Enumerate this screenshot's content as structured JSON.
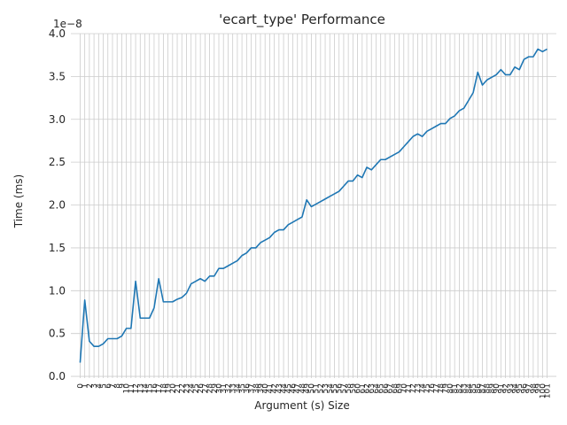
{
  "chart_data": {
    "type": "line",
    "title": "'ecart_type' Performance",
    "xlabel": "Argument (s) Size",
    "ylabel": "Time (ms)",
    "y_offset_label": "1e−8",
    "y_scale_exponent": -8,
    "xlim": [
      -2,
      103
    ],
    "ylim": [
      -0.02,
      4.0
    ],
    "ytick_values": [
      0.0,
      0.5,
      1.0,
      1.5,
      2.0,
      2.5,
      3.0,
      3.5,
      4.0
    ],
    "ytick_labels": [
      "0.0",
      "0.5",
      "1.0",
      "1.5",
      "2.0",
      "2.5",
      "3.0",
      "3.5",
      "4.0"
    ],
    "xtick_labels": [
      "0",
      "1",
      "2",
      "3",
      "4",
      "5",
      "6",
      "7",
      "8",
      "9",
      "10",
      "11",
      "12",
      "13",
      "14",
      "15",
      "16",
      "17",
      "18",
      "19",
      "20",
      "21",
      "22",
      "23",
      "24",
      "25",
      "26",
      "27",
      "28",
      "29",
      "30",
      "31",
      "32",
      "33",
      "34",
      "35",
      "36",
      "37",
      "38",
      "39",
      "40",
      "41",
      "42",
      "43",
      "44",
      "45",
      "46",
      "47",
      "48",
      "49",
      "50",
      "51",
      "52",
      "53",
      "54",
      "55",
      "56",
      "57",
      "58",
      "59",
      "60",
      "61",
      "62",
      "63",
      "64",
      "65",
      "66",
      "67",
      "68",
      "69",
      "70",
      "71",
      "72",
      "73",
      "74",
      "75",
      "76",
      "77",
      "78",
      "79",
      "80",
      "81",
      "82",
      "83",
      "84",
      "85",
      "86",
      "87",
      "88",
      "89",
      "90",
      "91",
      "92",
      "93",
      "94",
      "95",
      "96",
      "97",
      "98",
      "99",
      "100",
      "101"
    ],
    "grid": true,
    "line_color": "#1f77b4",
    "series": [
      {
        "values": [
          0.16,
          0.89,
          0.41,
          0.35,
          0.35,
          0.38,
          0.44,
          0.44,
          0.44,
          0.47,
          0.56,
          0.56,
          1.11,
          0.68,
          0.68,
          0.68,
          0.8,
          1.14,
          0.87,
          0.87,
          0.87,
          0.9,
          0.92,
          0.97,
          1.08,
          1.11,
          1.14,
          1.11,
          1.17,
          1.17,
          1.26,
          1.26,
          1.29,
          1.32,
          1.35,
          1.41,
          1.44,
          1.5,
          1.5,
          1.56,
          1.59,
          1.62,
          1.68,
          1.71,
          1.71,
          1.77,
          1.8,
          1.83,
          1.86,
          2.06,
          1.98,
          2.01,
          2.04,
          2.07,
          2.1,
          2.13,
          2.16,
          2.22,
          2.28,
          2.28,
          2.35,
          2.32,
          2.44,
          2.41,
          2.47,
          2.53,
          2.53,
          2.56,
          2.59,
          2.62,
          2.68,
          2.74,
          2.8,
          2.83,
          2.8,
          2.86,
          2.89,
          2.92,
          2.95,
          2.95,
          3.01,
          3.04,
          3.1,
          3.13,
          3.22,
          3.31,
          3.55,
          3.4,
          3.46,
          3.49,
          3.52,
          3.58,
          3.52,
          3.52,
          3.61,
          3.58,
          3.7,
          3.73,
          3.73,
          3.82,
          3.79,
          3.82
        ]
      }
    ]
  }
}
